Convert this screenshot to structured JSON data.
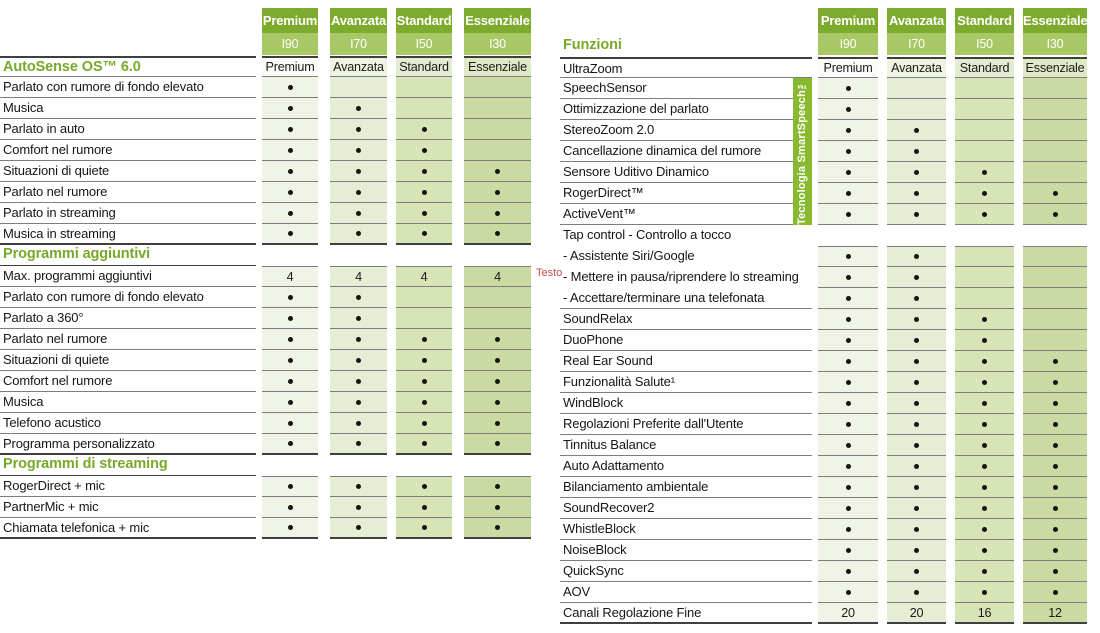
{
  "tiers": {
    "names": [
      "Premium",
      "Avanzata",
      "Standard",
      "Essenziale"
    ],
    "codes": [
      "I90",
      "I70",
      "I50",
      "I30"
    ]
  },
  "colors": {
    "tier_header_top": "#7CAB2D",
    "tier_header_bottom": "#A8C765",
    "column_tints": [
      "#F0F4E6",
      "#E5EDD4",
      "#D6E4B6",
      "#CBDAA2"
    ],
    "tier_row_tints": [
      "#FBFCF7",
      "#EFF3E2",
      "#E3ECD2",
      "#DEE9C6"
    ],
    "section_heading_green": "#78A82A",
    "banner_green": "#89B92F",
    "annotation_red": "#C0504D",
    "row_line": "#7D7D7D",
    "section_line": "#3F3F3F",
    "dot": "#141414"
  },
  "annotation": {
    "text": "Testo"
  },
  "smartspeech": {
    "label": "Tecnologia SmartSpeech™"
  },
  "left_table": {
    "rows": [
      {
        "t": "tier",
        "heading": true,
        "topline": true,
        "label": "AutoSense OS™ 6.0",
        "cells": [
          "Premium",
          "Avanzata",
          "Standard",
          "Essenziale"
        ]
      },
      {
        "t": "row",
        "label": "Parlato con rumore di fondo elevato",
        "cells": [
          "dot",
          "",
          "",
          ""
        ]
      },
      {
        "t": "row",
        "label": "Musica",
        "cells": [
          "dot",
          "dot",
          "",
          ""
        ]
      },
      {
        "t": "row",
        "label": "Parlato in auto",
        "cells": [
          "dot",
          "dot",
          "dot",
          ""
        ]
      },
      {
        "t": "row",
        "label": "Comfort nel rumore",
        "cells": [
          "dot",
          "dot",
          "dot",
          ""
        ]
      },
      {
        "t": "row",
        "label": "Situazioni di quiete",
        "cells": [
          "dot",
          "dot",
          "dot",
          "dot"
        ]
      },
      {
        "t": "row",
        "label": "Parlato nel rumore",
        "cells": [
          "dot",
          "dot",
          "dot",
          "dot"
        ]
      },
      {
        "t": "row",
        "label": "Parlato in streaming",
        "cells": [
          "dot",
          "dot",
          "dot",
          "dot"
        ]
      },
      {
        "t": "row",
        "label": "Musica in streaming",
        "cells": [
          "dot",
          "dot",
          "dot",
          "dot"
        ],
        "thick": true
      },
      {
        "t": "section",
        "label": "Programmi aggiuntivi"
      },
      {
        "t": "row",
        "label": "Max. programmi aggiuntivi",
        "cells": [
          "4",
          "4",
          "4",
          "4"
        ],
        "cellstop": true
      },
      {
        "t": "row",
        "label": "Parlato con rumore di fondo elevato",
        "cells": [
          "dot",
          "dot",
          "",
          ""
        ]
      },
      {
        "t": "row",
        "label": "Parlato a 360°",
        "cells": [
          "dot",
          "dot",
          "",
          ""
        ]
      },
      {
        "t": "row",
        "label": "Parlato nel rumore",
        "cells": [
          "dot",
          "dot",
          "dot",
          "dot"
        ]
      },
      {
        "t": "row",
        "label": "Situazioni di quiete",
        "cells": [
          "dot",
          "dot",
          "dot",
          "dot"
        ]
      },
      {
        "t": "row",
        "label": "Comfort nel rumore",
        "cells": [
          "dot",
          "dot",
          "dot",
          "dot"
        ]
      },
      {
        "t": "row",
        "label": "Musica",
        "cells": [
          "dot",
          "dot",
          "dot",
          "dot"
        ]
      },
      {
        "t": "row",
        "label": "Telefono acustico",
        "cells": [
          "dot",
          "dot",
          "dot",
          "dot"
        ]
      },
      {
        "t": "row",
        "label": "Programma personalizzato",
        "cells": [
          "dot",
          "dot",
          "dot",
          "dot"
        ],
        "thick": true
      },
      {
        "t": "section",
        "label": "Programmi di streaming"
      },
      {
        "t": "row",
        "label": "RogerDirect + mic",
        "cells": [
          "dot",
          "dot",
          "dot",
          "dot"
        ],
        "cellstop": true
      },
      {
        "t": "row",
        "label": "PartnerMic + mic",
        "cells": [
          "dot",
          "dot",
          "dot",
          "dot"
        ]
      },
      {
        "t": "row",
        "label": "Chiamata telefonica + mic",
        "cells": [
          "dot",
          "dot",
          "dot",
          "dot"
        ],
        "thick": true
      }
    ]
  },
  "right_table": {
    "rows": [
      {
        "t": "section",
        "label": "Funzioni",
        "noline": true
      },
      {
        "t": "tier",
        "topline": true,
        "label": "UltraZoom",
        "cells": [
          "Premium",
          "Avanzata",
          "Standard",
          "Essenziale"
        ]
      },
      {
        "t": "row",
        "label": "SpeechSensor",
        "cells": [
          "dot",
          "",
          "",
          ""
        ]
      },
      {
        "t": "row",
        "label": "Ottimizzazione del parlato",
        "cells": [
          "dot",
          "",
          "",
          ""
        ]
      },
      {
        "t": "row",
        "label": "StereoZoom 2.0",
        "cells": [
          "dot",
          "dot",
          "",
          ""
        ]
      },
      {
        "t": "row",
        "label": "Cancellazione dinamica del rumore",
        "cells": [
          "dot",
          "dot",
          "",
          ""
        ]
      },
      {
        "t": "row",
        "label": "Sensore Uditivo Dinamico",
        "cells": [
          "dot",
          "dot",
          "dot",
          ""
        ]
      },
      {
        "t": "row",
        "label": "RogerDirect™",
        "cells": [
          "dot",
          "dot",
          "dot",
          "dot"
        ]
      },
      {
        "t": "row",
        "label": "ActiveVent™",
        "cells": [
          "dot",
          "dot",
          "dot",
          "dot"
        ]
      },
      {
        "t": "labelonly",
        "label": "Tap control - Controllo a tocco"
      },
      {
        "t": "row",
        "label": "- Assistente Siri/Google",
        "cells": [
          "dot",
          "dot",
          "",
          ""
        ],
        "noline": true,
        "cellstop": true
      },
      {
        "t": "row",
        "label": "- Mettere in pausa/riprendere lo streaming",
        "cells": [
          "dot",
          "dot",
          "",
          ""
        ],
        "noline": true
      },
      {
        "t": "row",
        "label": "- Accettare/terminare una telefonata",
        "cells": [
          "dot",
          "dot",
          "",
          ""
        ]
      },
      {
        "t": "row",
        "label": "SoundRelax",
        "cells": [
          "dot",
          "dot",
          "dot",
          ""
        ]
      },
      {
        "t": "row",
        "label": "DuoPhone",
        "cells": [
          "dot",
          "dot",
          "dot",
          ""
        ]
      },
      {
        "t": "row",
        "label": "Real Ear Sound",
        "cells": [
          "dot",
          "dot",
          "dot",
          "dot"
        ]
      },
      {
        "t": "row",
        "label": "Funzionalità Salute¹",
        "cells": [
          "dot",
          "dot",
          "dot",
          "dot"
        ]
      },
      {
        "t": "row",
        "label": "WindBlock",
        "cells": [
          "dot",
          "dot",
          "dot",
          "dot"
        ]
      },
      {
        "t": "row",
        "label": "Regolazioni Preferite dall'Utente",
        "cells": [
          "dot",
          "dot",
          "dot",
          "dot"
        ]
      },
      {
        "t": "row",
        "label": "Tinnitus Balance",
        "cells": [
          "dot",
          "dot",
          "dot",
          "dot"
        ]
      },
      {
        "t": "row",
        "label": "Auto Adattamento",
        "cells": [
          "dot",
          "dot",
          "dot",
          "dot"
        ]
      },
      {
        "t": "row",
        "label": "Bilanciamento ambientale",
        "cells": [
          "dot",
          "dot",
          "dot",
          "dot"
        ]
      },
      {
        "t": "row",
        "label": "SoundRecover2",
        "cells": [
          "dot",
          "dot",
          "dot",
          "dot"
        ]
      },
      {
        "t": "row",
        "label": "WhistleBlock",
        "cells": [
          "dot",
          "dot",
          "dot",
          "dot"
        ]
      },
      {
        "t": "row",
        "label": "NoiseBlock",
        "cells": [
          "dot",
          "dot",
          "dot",
          "dot"
        ]
      },
      {
        "t": "row",
        "label": "QuickSync",
        "cells": [
          "dot",
          "dot",
          "dot",
          "dot"
        ]
      },
      {
        "t": "row",
        "label": "AOV",
        "cells": [
          "dot",
          "dot",
          "dot",
          "dot"
        ]
      },
      {
        "t": "row",
        "label": "Canali Regolazione Fine",
        "cells": [
          "20",
          "20",
          "16",
          "12"
        ],
        "thick": true
      }
    ]
  }
}
